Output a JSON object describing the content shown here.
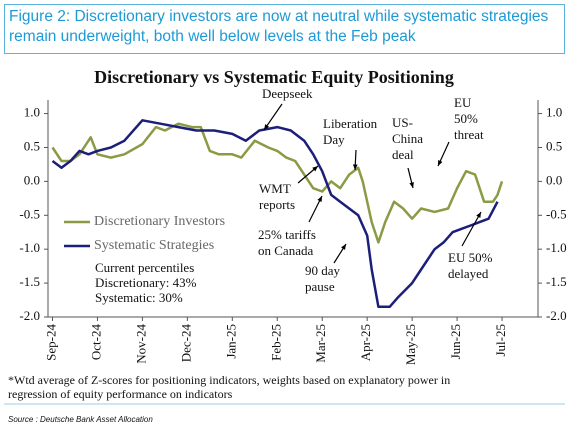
{
  "header": {
    "title": "Figure 2: Discretionary investors are now at neutral while systematic strategies remain underweight, both well below levels at the Feb peak"
  },
  "chart_data": {
    "type": "line",
    "title": "Discretionary  vs Systematic Equity Positioning",
    "xlim": [
      -0.1,
      10.8
    ],
    "xticks": [
      {
        "value": 0,
        "label": "Sep-24"
      },
      {
        "value": 1,
        "label": "Oct-24"
      },
      {
        "value": 2,
        "label": "Nov-24"
      },
      {
        "value": 3,
        "label": "Dec-24"
      },
      {
        "value": 4,
        "label": "Jan-25"
      },
      {
        "value": 5,
        "label": "Feb-25"
      },
      {
        "value": 6,
        "label": "Mar-25"
      },
      {
        "value": 7,
        "label": "Apr-25"
      },
      {
        "value": 8,
        "label": "May-25"
      },
      {
        "value": 9,
        "label": "Jun-25"
      },
      {
        "value": 10,
        "label": "Jul-25"
      }
    ],
    "ylim": [
      -2,
      1.2
    ],
    "yticks": [
      {
        "value": 1,
        "label": "1.0"
      },
      {
        "value": 0.5,
        "label": "0.5"
      },
      {
        "value": 0,
        "label": "0.0"
      },
      {
        "value": -0.5,
        "label": "-0.5"
      },
      {
        "value": -1,
        "label": "-1.0"
      },
      {
        "value": -1.5,
        "label": "-1.5"
      },
      {
        "value": -2,
        "label": "-2.0"
      }
    ],
    "y2lim": [
      -2,
      1.2
    ],
    "y2ticks": [
      {
        "value": 1,
        "label": "1.0"
      },
      {
        "value": 0.5,
        "label": "0.5"
      },
      {
        "value": 0,
        "label": "0.0"
      },
      {
        "value": -0.5,
        "label": "-0.5"
      },
      {
        "value": -1,
        "label": "-1.0"
      },
      {
        "value": -1.5,
        "label": "-1.5"
      },
      {
        "value": -2,
        "label": "-2.0"
      }
    ],
    "series": [
      {
        "name": "Discretionary Investors",
        "color": "#8a9b45",
        "x": [
          0,
          0.2,
          0.4,
          0.6,
          0.85,
          1.0,
          1.3,
          1.6,
          2.0,
          2.3,
          2.5,
          2.8,
          3.1,
          3.3,
          3.5,
          3.7,
          4.0,
          4.2,
          4.5,
          4.8,
          5.0,
          5.2,
          5.4,
          5.6,
          5.8,
          6.0,
          6.2,
          6.4,
          6.6,
          6.8,
          6.9,
          7.1,
          7.25,
          7.4,
          7.6,
          7.8,
          8.0,
          8.2,
          8.5,
          8.8,
          9.0,
          9.2,
          9.4,
          9.6,
          9.8,
          9.9,
          10.0
        ],
        "values": [
          0.5,
          0.3,
          0.3,
          0.4,
          0.65,
          0.4,
          0.35,
          0.4,
          0.55,
          0.8,
          0.75,
          0.85,
          0.8,
          0.8,
          0.45,
          0.4,
          0.4,
          0.35,
          0.6,
          0.5,
          0.45,
          0.35,
          0.3,
          0.1,
          -0.1,
          -0.15,
          0,
          -0.1,
          0.1,
          0.2,
          0,
          -0.6,
          -0.9,
          -0.6,
          -0.3,
          -0.4,
          -0.55,
          -0.4,
          -0.45,
          -0.4,
          -0.1,
          0.15,
          0.1,
          -0.3,
          -0.3,
          -0.2,
          0
        ]
      },
      {
        "name": "Systematic Strategies",
        "color": "#1c1f7a",
        "x": [
          0,
          0.2,
          0.4,
          0.6,
          0.8,
          1.0,
          1.3,
          1.6,
          2.0,
          2.4,
          2.8,
          3.2,
          3.6,
          4.0,
          4.3,
          4.6,
          5.0,
          5.3,
          5.6,
          5.8,
          6.0,
          6.2,
          6.4,
          6.6,
          6.8,
          7.0,
          7.1,
          7.25,
          7.5,
          7.7,
          8.0,
          8.2,
          8.5,
          8.7,
          8.9,
          9.1,
          9.3,
          9.5,
          9.7,
          9.9
        ],
        "values": [
          0.3,
          0.2,
          0.3,
          0.45,
          0.4,
          0.45,
          0.5,
          0.6,
          0.9,
          0.85,
          0.8,
          0.75,
          0.75,
          0.7,
          0.6,
          0.75,
          0.8,
          0.75,
          0.6,
          0.4,
          0.15,
          -0.2,
          -0.3,
          -0.4,
          -0.5,
          -0.8,
          -1.3,
          -1.85,
          -1.85,
          -1.7,
          -1.5,
          -1.3,
          -1.0,
          -0.9,
          -0.75,
          -0.7,
          -0.65,
          -0.6,
          -0.55,
          -0.3
        ]
      }
    ],
    "annotations": [
      [
        "Deepseek"
      ],
      [
        "Liberation",
        "Day"
      ],
      [
        "US-",
        "China",
        "deal"
      ],
      [
        "EU",
        "50%",
        "threat"
      ],
      [
        "WMT",
        "reports"
      ],
      [
        "25% tariffs",
        "on Canada"
      ],
      [
        "90 day",
        "pause"
      ],
      [
        "EU 50%",
        "delayed"
      ]
    ],
    "percentiles": [
      "Current percentiles",
      "Discretionary: 43%",
      "Systematic: 30%"
    ],
    "footnote": [
      "*Wtd average of Z-scores for positioning indicators, weights based on explanatory power in",
      "regression of equity performance on indicators"
    ],
    "source": "Source : Deutsche Bank Asset Allocation"
  }
}
